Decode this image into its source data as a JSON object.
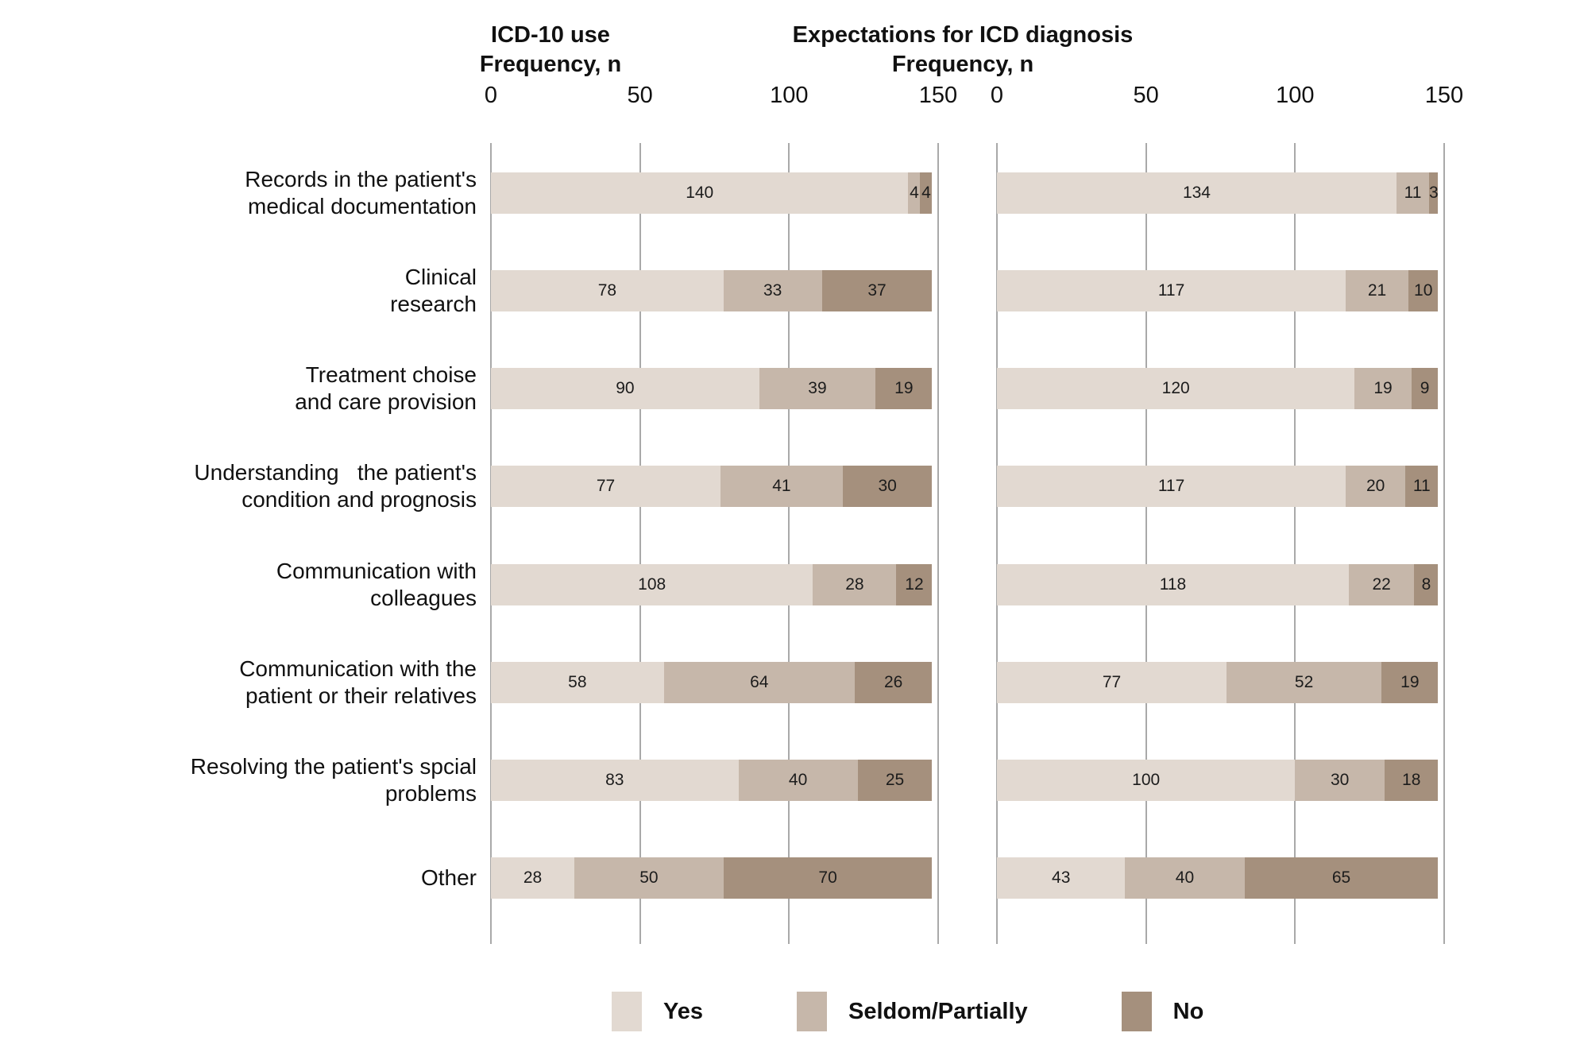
{
  "chart_data": {
    "type": "bar",
    "orientation": "horizontal",
    "stacked": true,
    "grid": true,
    "xlim": [
      0,
      150
    ],
    "x_ticks": [
      0,
      50,
      100,
      150
    ],
    "categories": [
      "Records in the patient's\nmedical documentation",
      "Clinical\nresearch",
      "Treatment choise\nand care provision",
      "Understanding   the patient's\ncondition and prognosis",
      "Communication with\ncolleagues",
      "Communication with the\npatient or their relatives",
      "Resolving the patient's spcial\nproblems",
      "Other"
    ],
    "panels": [
      {
        "title": "ICD-10 use\nFrequency, n",
        "series": [
          {
            "key": "yes",
            "name": "Yes",
            "color": "#e2d9d1",
            "values": [
              140,
              78,
              90,
              77,
              108,
              58,
              83,
              28
            ]
          },
          {
            "key": "seldom-partially",
            "name": "Seldom/Partially",
            "color": "#c6b7aa",
            "values": [
              4,
              33,
              39,
              41,
              28,
              64,
              40,
              50
            ]
          },
          {
            "key": "no",
            "name": "No",
            "color": "#a5907d",
            "values": [
              4,
              37,
              19,
              30,
              12,
              26,
              25,
              70
            ]
          }
        ]
      },
      {
        "title": "Expectations for ICD diagnosis\nFrequency, n",
        "series": [
          {
            "key": "yes",
            "name": "Yes",
            "color": "#e2d9d1",
            "values": [
              134,
              117,
              120,
              117,
              118,
              77,
              100,
              43
            ]
          },
          {
            "key": "seldom-partially",
            "name": "Seldom/Partially",
            "color": "#c6b7aa",
            "values": [
              11,
              21,
              19,
              20,
              22,
              52,
              30,
              40
            ]
          },
          {
            "key": "no",
            "name": "No",
            "color": "#a5907d",
            "values": [
              3,
              10,
              9,
              11,
              8,
              19,
              18,
              65
            ]
          }
        ]
      }
    ],
    "legend": {
      "position": "bottom",
      "items": [
        {
          "key": "yes",
          "label": "Yes",
          "color": "#e2d9d1"
        },
        {
          "key": "seldom-partially",
          "label": "Seldom/Partially",
          "color": "#c6b7aa"
        },
        {
          "key": "no",
          "label": "No",
          "color": "#a5907d"
        }
      ]
    },
    "colors": {
      "gridline": "#a9a9a9",
      "text": "#111111"
    }
  }
}
